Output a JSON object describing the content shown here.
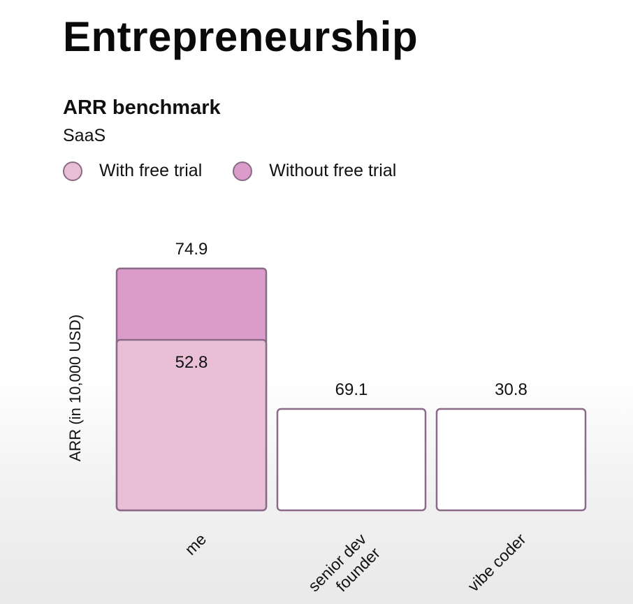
{
  "page": {
    "title": "Entrepreneurship"
  },
  "chart_data": {
    "type": "bar",
    "title": "ARR benchmark",
    "subtitle": "SaaS",
    "ylabel": "ARR (in 10,000 USD)",
    "xlabel": "",
    "categories": [
      "me",
      "senior dev\nfounder",
      "vibe coder"
    ],
    "series": [
      {
        "name": "With free trial",
        "color": "#e8bfd6",
        "values": [
          52.8,
          null,
          null
        ],
        "labels": [
          "52.8",
          "",
          ""
        ]
      },
      {
        "name": "Without free trial",
        "color": "#db9ccb",
        "values": [
          74.9,
          null,
          null
        ],
        "labels": [
          "74.9",
          "",
          ""
        ]
      }
    ],
    "empty_bar_labels": [
      "",
      "69.1",
      "30.8"
    ],
    "legend_position": "top-left",
    "grid": false,
    "colors": {
      "outline": "#8a6a86",
      "empty_fill": "#ffffff"
    }
  }
}
